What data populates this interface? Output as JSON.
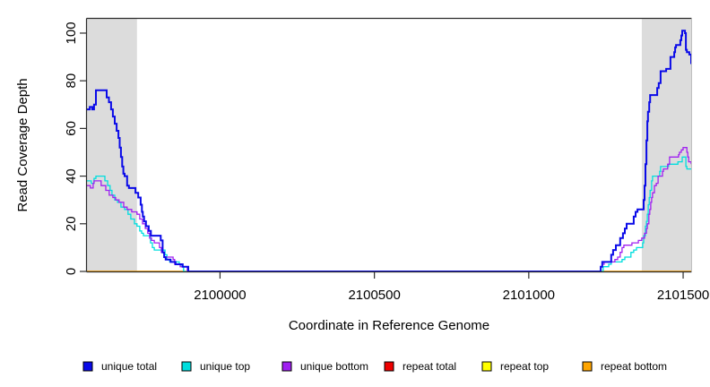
{
  "chart_data": {
    "type": "line",
    "step": "after",
    "title": "",
    "xlabel": "Coordinate in Reference Genome",
    "ylabel": "Read Coverage Depth",
    "xlim": [
      2099569,
      2101526
    ],
    "ylim": [
      0,
      106
    ],
    "x_ticks": [
      2100000,
      2100500,
      2101000,
      2101500
    ],
    "y_ticks": [
      0,
      20,
      40,
      60,
      80,
      100
    ],
    "grid": false,
    "legend_position": "bottom",
    "plot_bg": "#ffffff",
    "axis_color": "#2b2b2b",
    "shaded_regions": [
      {
        "x0": 2099569,
        "x1": 2099731,
        "color": "#dcdcdc"
      },
      {
        "x0": 2101366,
        "x1": 2101526,
        "color": "#dcdcdc"
      }
    ],
    "draw_order": [
      3,
      4,
      5,
      1,
      2,
      0
    ],
    "series": [
      {
        "label": "unique total",
        "color": "#0a0ae8",
        "lwd": 2,
        "points": [
          [
            2099569,
            68
          ],
          [
            2099578,
            69
          ],
          [
            2099586,
            68
          ],
          [
            2099592,
            70
          ],
          [
            2099598,
            76
          ],
          [
            2099633,
            73
          ],
          [
            2099640,
            71
          ],
          [
            2099647,
            68
          ],
          [
            2099653,
            65
          ],
          [
            2099659,
            62
          ],
          [
            2099665,
            59
          ],
          [
            2099671,
            56
          ],
          [
            2099675,
            52
          ],
          [
            2099679,
            48
          ],
          [
            2099683,
            44
          ],
          [
            2099687,
            41
          ],
          [
            2099691,
            40
          ],
          [
            2099699,
            36
          ],
          [
            2099705,
            35
          ],
          [
            2099726,
            33
          ],
          [
            2099735,
            31
          ],
          [
            2099743,
            28
          ],
          [
            2099747,
            25
          ],
          [
            2099750,
            23
          ],
          [
            2099754,
            21
          ],
          [
            2099760,
            19
          ],
          [
            2099769,
            17
          ],
          [
            2099776,
            15
          ],
          [
            2099808,
            13
          ],
          [
            2099814,
            8
          ],
          [
            2099819,
            6
          ],
          [
            2099824,
            5
          ],
          [
            2099840,
            4
          ],
          [
            2099856,
            3
          ],
          [
            2099879,
            2
          ],
          [
            2099897,
            0
          ],
          [
            2101233,
            2
          ],
          [
            2101238,
            4
          ],
          [
            2101267,
            7
          ],
          [
            2101273,
            9
          ],
          [
            2101282,
            11
          ],
          [
            2101296,
            14
          ],
          [
            2101305,
            16
          ],
          [
            2101311,
            18
          ],
          [
            2101317,
            20
          ],
          [
            2101340,
            23
          ],
          [
            2101346,
            25
          ],
          [
            2101352,
            26
          ],
          [
            2101372,
            30
          ],
          [
            2101375,
            36
          ],
          [
            2101378,
            45
          ],
          [
            2101381,
            55
          ],
          [
            2101384,
            63
          ],
          [
            2101386,
            67
          ],
          [
            2101390,
            71
          ],
          [
            2101393,
            74
          ],
          [
            2101416,
            77
          ],
          [
            2101421,
            79
          ],
          [
            2101427,
            84
          ],
          [
            2101445,
            85
          ],
          [
            2101459,
            90
          ],
          [
            2101471,
            92
          ],
          [
            2101474,
            94
          ],
          [
            2101477,
            95
          ],
          [
            2101491,
            97
          ],
          [
            2101494,
            99
          ],
          [
            2101497,
            101
          ],
          [
            2101506,
            100
          ],
          [
            2101509,
            93
          ],
          [
            2101512,
            92
          ],
          [
            2101520,
            91
          ],
          [
            2101526,
            87
          ]
        ]
      },
      {
        "label": "unique top",
        "color": "#00dede",
        "lwd": 1.3,
        "points": [
          [
            2099569,
            38
          ],
          [
            2099583,
            37
          ],
          [
            2099592,
            39
          ],
          [
            2099598,
            40
          ],
          [
            2099627,
            38
          ],
          [
            2099636,
            36
          ],
          [
            2099644,
            34
          ],
          [
            2099650,
            32
          ],
          [
            2099659,
            30
          ],
          [
            2099668,
            29
          ],
          [
            2099679,
            27
          ],
          [
            2099691,
            26
          ],
          [
            2099702,
            24
          ],
          [
            2099711,
            22
          ],
          [
            2099723,
            20
          ],
          [
            2099731,
            19
          ],
          [
            2099740,
            17
          ],
          [
            2099746,
            16
          ],
          [
            2099752,
            15
          ],
          [
            2099775,
            12
          ],
          [
            2099781,
            10
          ],
          [
            2099787,
            9
          ],
          [
            2099822,
            7
          ],
          [
            2099828,
            5
          ],
          [
            2099837,
            4
          ],
          [
            2099868,
            3
          ],
          [
            2099874,
            2
          ],
          [
            2099882,
            0
          ],
          [
            2101241,
            2
          ],
          [
            2101259,
            3
          ],
          [
            2101267,
            4
          ],
          [
            2101302,
            5
          ],
          [
            2101311,
            6
          ],
          [
            2101331,
            8
          ],
          [
            2101340,
            9
          ],
          [
            2101349,
            10
          ],
          [
            2101369,
            12
          ],
          [
            2101372,
            15
          ],
          [
            2101378,
            19
          ],
          [
            2101381,
            21
          ],
          [
            2101384,
            24
          ],
          [
            2101387,
            28
          ],
          [
            2101390,
            31
          ],
          [
            2101393,
            34
          ],
          [
            2101398,
            38
          ],
          [
            2101401,
            40
          ],
          [
            2101424,
            42
          ],
          [
            2101427,
            44
          ],
          [
            2101453,
            45
          ],
          [
            2101483,
            46
          ],
          [
            2101497,
            48
          ],
          [
            2101509,
            44
          ],
          [
            2101512,
            43
          ],
          [
            2101526,
            43
          ]
        ]
      },
      {
        "label": "unique bottom",
        "color": "#a020f0",
        "lwd": 1.3,
        "points": [
          [
            2099569,
            36
          ],
          [
            2099580,
            35
          ],
          [
            2099589,
            37
          ],
          [
            2099592,
            38
          ],
          [
            2099615,
            36
          ],
          [
            2099630,
            34
          ],
          [
            2099641,
            32
          ],
          [
            2099653,
            31
          ],
          [
            2099662,
            30
          ],
          [
            2099673,
            29
          ],
          [
            2099688,
            27
          ],
          [
            2099699,
            26
          ],
          [
            2099714,
            25
          ],
          [
            2099731,
            24
          ],
          [
            2099740,
            22
          ],
          [
            2099749,
            20
          ],
          [
            2099758,
            18
          ],
          [
            2099766,
            16
          ],
          [
            2099772,
            14
          ],
          [
            2099778,
            13
          ],
          [
            2099787,
            12
          ],
          [
            2099804,
            10
          ],
          [
            2099810,
            8
          ],
          [
            2099819,
            6
          ],
          [
            2099848,
            5
          ],
          [
            2099853,
            3
          ],
          [
            2099871,
            2
          ],
          [
            2099894,
            0
          ],
          [
            2101233,
            2
          ],
          [
            2101238,
            3
          ],
          [
            2101244,
            4
          ],
          [
            2101279,
            5
          ],
          [
            2101288,
            6
          ],
          [
            2101296,
            8
          ],
          [
            2101302,
            10
          ],
          [
            2101308,
            11
          ],
          [
            2101334,
            12
          ],
          [
            2101355,
            13
          ],
          [
            2101366,
            14
          ],
          [
            2101375,
            16
          ],
          [
            2101381,
            18
          ],
          [
            2101384,
            20
          ],
          [
            2101389,
            24
          ],
          [
            2101392,
            26
          ],
          [
            2101395,
            29
          ],
          [
            2101398,
            31
          ],
          [
            2101401,
            33
          ],
          [
            2101407,
            36
          ],
          [
            2101413,
            37
          ],
          [
            2101419,
            40
          ],
          [
            2101433,
            42
          ],
          [
            2101436,
            43
          ],
          [
            2101450,
            45
          ],
          [
            2101456,
            48
          ],
          [
            2101485,
            49
          ],
          [
            2101488,
            50
          ],
          [
            2101494,
            51
          ],
          [
            2101500,
            52
          ],
          [
            2101512,
            50
          ],
          [
            2101515,
            48
          ],
          [
            2101518,
            46
          ],
          [
            2101526,
            45
          ]
        ]
      },
      {
        "label": "repeat total",
        "color": "#ee0000",
        "lwd": 1.2,
        "points": [
          [
            2099569,
            0
          ],
          [
            2101526,
            0
          ]
        ]
      },
      {
        "label": "repeat top",
        "color": "#ffff00",
        "lwd": 1.2,
        "points": [
          [
            2099569,
            0
          ],
          [
            2101526,
            0
          ]
        ]
      },
      {
        "label": "repeat bottom",
        "color": "#ffa500",
        "lwd": 1.5,
        "points": [
          [
            2099569,
            0
          ],
          [
            2101526,
            0
          ]
        ]
      }
    ]
  }
}
